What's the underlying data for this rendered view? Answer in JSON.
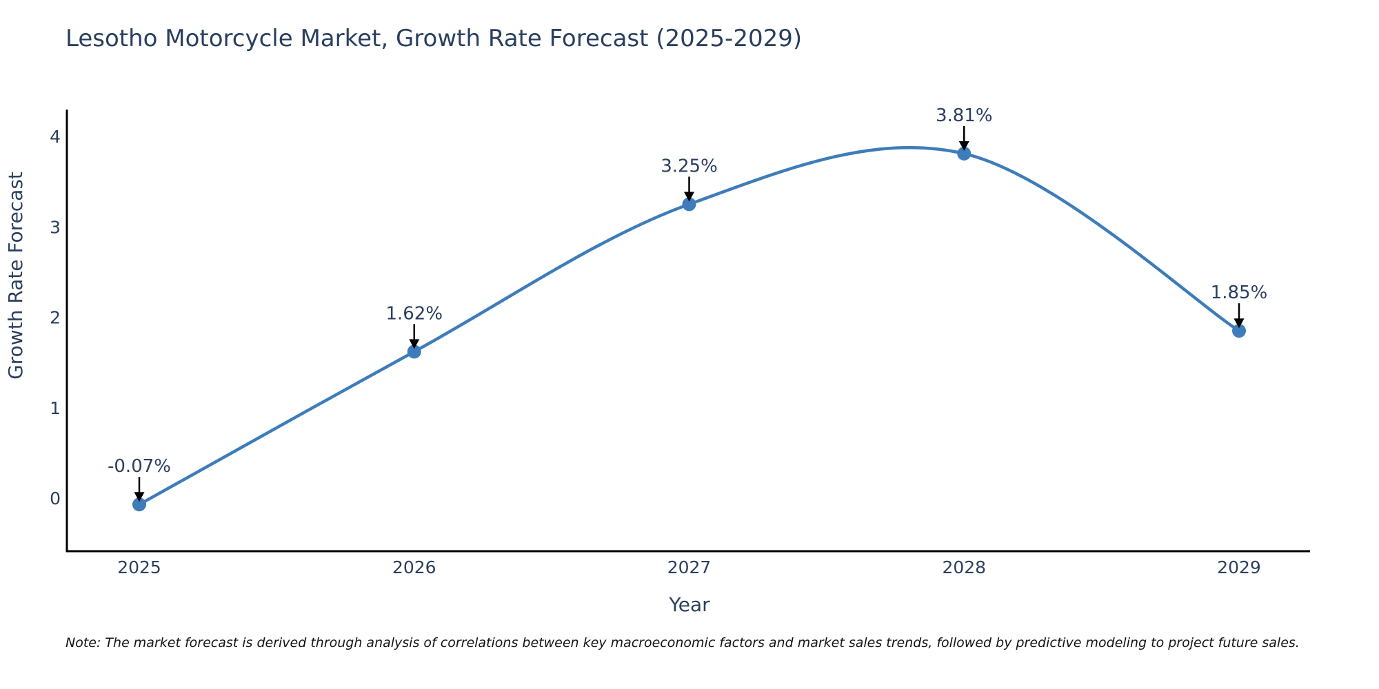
{
  "title": "Lesotho Motorcycle Market, Growth Rate Forecast (2025-2029)",
  "note": "Note: The market forecast is derived through analysis of correlations between key macroeconomic factors and market sales trends, followed by predictive modeling to project future sales.",
  "chart_data": {
    "type": "line",
    "title": "Lesotho Motorcycle Market, Growth Rate Forecast (2025-2029)",
    "x": [
      2025,
      2026,
      2027,
      2028,
      2029
    ],
    "y": [
      -0.07,
      1.62,
      3.25,
      3.81,
      1.85
    ],
    "point_labels": [
      "-0.07%",
      "1.62%",
      "3.25%",
      "3.81%",
      "1.85%"
    ],
    "xlabel": "Year",
    "ylabel": "Growth Rate Forecast",
    "xticks": [
      "2025",
      "2026",
      "2027",
      "2028",
      "2029"
    ],
    "yticks": [
      "0",
      "1",
      "2",
      "3",
      "4"
    ],
    "ylim": [
      -0.59,
      4.3
    ],
    "line_shape": "spline",
    "grid": false,
    "legend": "none",
    "annotations_style": "label-with-down-arrow",
    "colors": {
      "line": "#3e7cba",
      "marker": "#3e7cba",
      "axis": "#000000",
      "arrow": "#000000",
      "text": "#2a3f5f",
      "note_text": "#141414",
      "background": "#ffffff"
    }
  }
}
